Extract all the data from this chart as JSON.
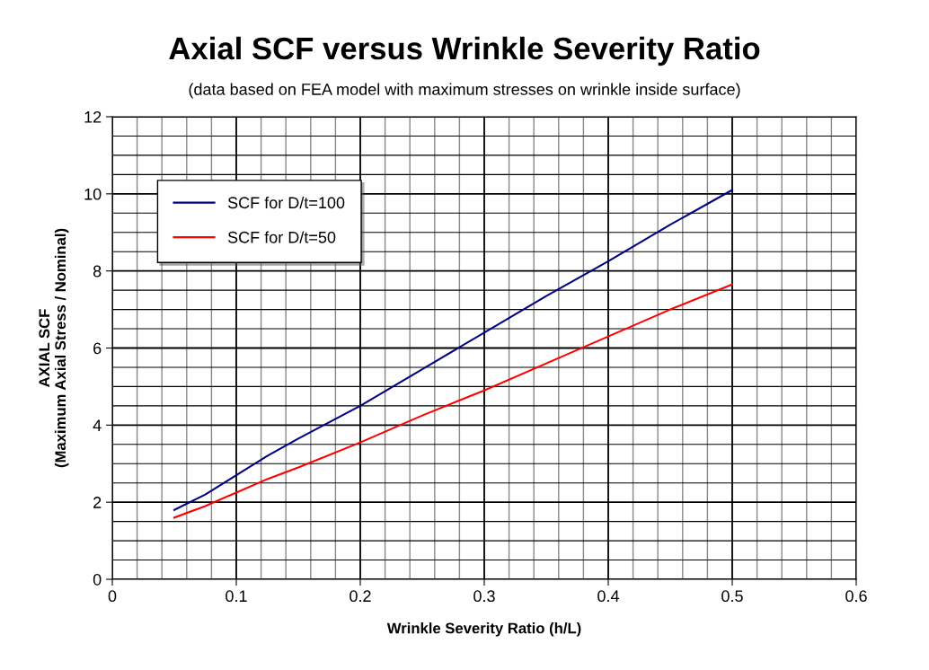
{
  "chart_data": {
    "type": "line",
    "title": "Axial SCF versus Wrinkle Severity Ratio",
    "subtitle": "(data based on FEA model with maximum stresses on wrinkle inside surface)",
    "xlabel": "Wrinkle Severity Ratio (h/L)",
    "ylabel": "AXIAL SCF\n(Maximum Axial Stress / Nominal)",
    "series": [
      {
        "name": "SCF for D/t=100",
        "color": "#000080",
        "x": [
          0.05,
          0.075,
          0.1,
          0.125,
          0.15,
          0.2,
          0.25,
          0.3,
          0.35,
          0.4,
          0.45,
          0.5
        ],
        "values": [
          1.8,
          2.2,
          2.7,
          3.2,
          3.65,
          4.5,
          5.45,
          6.4,
          7.35,
          8.25,
          9.2,
          10.1
        ]
      },
      {
        "name": "SCF for D/t=50",
        "color": "#ff0000",
        "x": [
          0.05,
          0.075,
          0.1,
          0.125,
          0.15,
          0.2,
          0.25,
          0.3,
          0.35,
          0.4,
          0.45,
          0.5
        ],
        "values": [
          1.6,
          1.9,
          2.25,
          2.6,
          2.9,
          3.55,
          4.25,
          4.9,
          5.6,
          6.3,
          7.0,
          7.65
        ]
      }
    ],
    "xlim": [
      0,
      0.6
    ],
    "xticks": [
      0,
      0.1,
      0.2,
      0.3,
      0.4,
      0.5,
      0.6
    ],
    "ylim": [
      0,
      12
    ],
    "yticks": [
      0,
      2,
      4,
      6,
      8,
      10,
      12
    ],
    "grid": true,
    "legend": "top left",
    "marker": "none",
    "line_style": "solid"
  }
}
